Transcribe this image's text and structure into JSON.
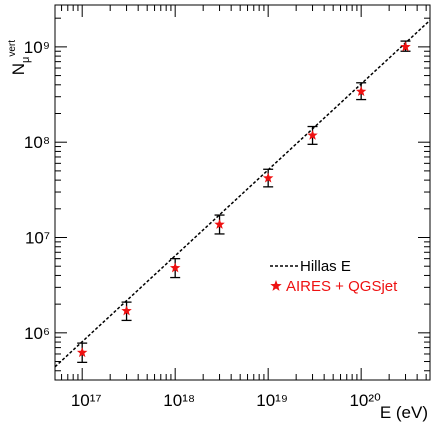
{
  "chart_data": {
    "type": "scatter",
    "xlabel": "E (eV)",
    "ylabel": {
      "main": "N",
      "sub": "μ",
      "sup": "vert"
    },
    "log_x": true,
    "log_y": true,
    "xlim": [
      5.1e+16,
      5.5e+20
    ],
    "ylim": [
      320000.0,
      2750000000.0
    ],
    "xticks": [
      {
        "value": 1e+17,
        "label": "10¹⁷"
      },
      {
        "value": 1e+18,
        "label": "10¹⁸"
      },
      {
        "value": 1e+19,
        "label": "10¹⁹"
      },
      {
        "value": 1e+20,
        "label": "10²⁰"
      }
    ],
    "yticks": [
      {
        "value": 1000000.0,
        "label": "10⁶"
      },
      {
        "value": 10000000.0,
        "label": "10⁷"
      },
      {
        "value": 100000000.0,
        "label": "10⁸"
      },
      {
        "value": 1000000000.0,
        "label": "10⁹"
      }
    ],
    "xminorticks": [
      6e+16,
      7e+16,
      8e+16,
      9e+16,
      2e+17,
      3e+17,
      4e+17,
      5e+17,
      6e+17,
      7e+17,
      8e+17,
      9e+17,
      2e+18,
      3e+18,
      4e+18,
      5e+18,
      6e+18,
      7e+18,
      8e+18,
      9e+18,
      2e+19,
      3e+19,
      4e+19,
      5e+19,
      6e+19,
      7e+19,
      8e+19,
      9e+19,
      2e+20,
      3e+20,
      4e+20,
      5e+20
    ],
    "yminorticks": [
      400000.0,
      500000.0,
      600000.0,
      700000.0,
      800000.0,
      900000.0,
      2000000.0,
      3000000.0,
      4000000.0,
      5000000.0,
      6000000.0,
      7000000.0,
      8000000.0,
      9000000.0,
      20000000.0,
      30000000.0,
      40000000.0,
      50000000.0,
      60000000.0,
      70000000.0,
      80000000.0,
      90000000.0,
      200000000.0,
      300000000.0,
      400000000.0,
      500000000.0,
      600000000.0,
      700000000.0,
      800000000.0,
      900000000.0,
      2000000000.0
    ],
    "legend": "center right",
    "series": [
      {
        "name": "Hillas E",
        "type": "line",
        "dashed": true,
        "color": "#000000",
        "x": [
          5.1e+16,
          5.5e+20
        ],
        "values": [
          440000.0,
          1900000000.0
        ]
      },
      {
        "name": "AIRES + QGSjet",
        "type": "scatter",
        "marker": "star",
        "color": "#ee1111",
        "errcolor": "#000000",
        "x": [
          1e+17,
          3e+17,
          1e+18,
          3e+18,
          1e+19,
          3e+19,
          1e+20,
          3e+20
        ],
        "values": [
          620000.0,
          1700000.0,
          4800000.0,
          13700000.0,
          42000000.0,
          118000000.0,
          340000000.0,
          1000000000.0
        ],
        "yerr_low": [
          490000.0,
          1350000.0,
          3800000.0,
          10900000.0,
          34000000.0,
          95000000.0,
          280000000.0,
          900000000.0
        ],
        "yerr_high": [
          780000.0,
          2100000.0,
          6000000.0,
          17200000.0,
          52000000.0,
          146000000.0,
          420000000.0,
          1150000000.0
        ]
      }
    ]
  }
}
